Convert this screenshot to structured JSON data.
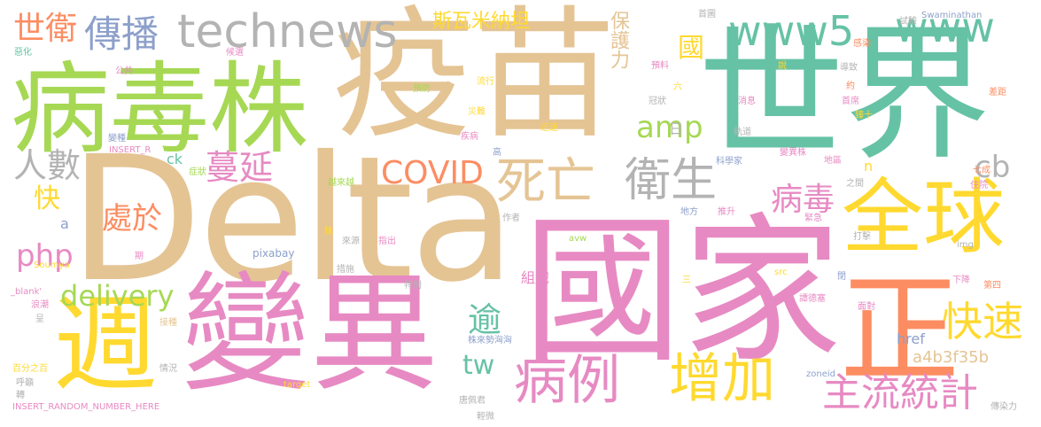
{
  "words": [
    {
      "id": "delta",
      "text": "Delta",
      "color": "#e5c494"
    },
    {
      "id": "yimiao",
      "text": "疫苗",
      "color": "#e5c494"
    },
    {
      "id": "shijie",
      "text": "世界",
      "color": "#66c2a5"
    },
    {
      "id": "guojia",
      "text": "國家",
      "color": "#e78ac3"
    },
    {
      "id": "bingduzhu",
      "text": "病毒株",
      "color": "#a6d854"
    },
    {
      "id": "bianyi",
      "text": "變異",
      "color": "#e78ac3"
    },
    {
      "id": "zhou",
      "text": "週",
      "color": "#ffd92f"
    },
    {
      "id": "zheng",
      "text": "正",
      "color": "#fc8d62"
    },
    {
      "id": "quanqiu",
      "text": "全球",
      "color": "#ffd92f"
    },
    {
      "id": "technews",
      "text": "technews",
      "color": "#b3b3b3"
    },
    {
      "id": "www5",
      "text": "www5",
      "color": "#66c2a5"
    },
    {
      "id": "www",
      "text": "www",
      "color": "#66c2a5"
    },
    {
      "id": "chuanbo",
      "text": "傳播",
      "color": "#8da0cb"
    },
    {
      "id": "shiwei",
      "text": "世衛",
      "color": "#fc8d62"
    },
    {
      "id": "bingli",
      "text": "病例",
      "color": "#e78ac3"
    },
    {
      "id": "zengjia",
      "text": "增加",
      "color": "#ffd92f"
    },
    {
      "id": "siwang",
      "text": "死亡",
      "color": "#e5c494"
    },
    {
      "id": "weisheng",
      "text": "衛生",
      "color": "#b3b3b3"
    },
    {
      "id": "kuaisu",
      "text": "快速",
      "color": "#ffd92f"
    },
    {
      "id": "zhuliu",
      "text": "主流統計",
      "color": "#e78ac3"
    },
    {
      "id": "covid",
      "text": "COVID",
      "color": "#fc8d62"
    },
    {
      "id": "amp",
      "text": "amp",
      "color": "#a6d854"
    },
    {
      "id": "delivery",
      "text": "delivery",
      "color": "#a6d854"
    },
    {
      "id": "php",
      "text": "php",
      "color": "#e78ac3"
    },
    {
      "id": "manyan",
      "text": "蔓延",
      "color": "#e78ac3"
    },
    {
      "id": "renshu",
      "text": "人數",
      "color": "#b3b3b3"
    },
    {
      "id": "chuyu",
      "text": "處於",
      "color": "#fc8d62"
    },
    {
      "id": "bingdu",
      "text": "病毒",
      "color": "#e78ac3"
    },
    {
      "id": "tw",
      "text": "tw",
      "color": "#66c2a5"
    },
    {
      "id": "yu",
      "text": "逾",
      "color": "#66c2a5"
    },
    {
      "id": "cb",
      "text": "cb",
      "color": "#b3b3b3"
    },
    {
      "id": "guo",
      "text": "國",
      "color": "#ffd92f"
    },
    {
      "id": "kuai",
      "text": "快",
      "color": "#ffd92f"
    },
    {
      "id": "baohuli",
      "text": "保護力",
      "color": "#e5c494"
    },
    {
      "id": "siwamina",
      "text": "斯瓦米納坦",
      "color": "#ffd92f"
    },
    {
      "id": "href",
      "text": "href",
      "color": "#8da0cb"
    },
    {
      "id": "a4b3f35b",
      "text": "a4b3f35b",
      "color": "#e5c494"
    },
    {
      "id": "zuzhi",
      "text": "組織",
      "color": "#e78ac3"
    },
    {
      "id": "ck",
      "text": "ck",
      "color": "#66c2a5"
    },
    {
      "id": "ri",
      "text": "日",
      "color": "#b3b3b3"
    },
    {
      "id": "n",
      "text": "n",
      "color": "#ffd92f"
    },
    {
      "id": "a",
      "text": "a",
      "color": "#8da0cb"
    },
    {
      "id": "pixabay",
      "text": "pixabay",
      "color": "#8da0cb"
    },
    {
      "id": "swaminathan",
      "text": "Swaminathan",
      "color": "#8da0cb"
    },
    {
      "id": "avw",
      "text": "avw",
      "color": "#a6d854"
    },
    {
      "id": "zoneid",
      "text": "zoneid",
      "color": "#8da0cb"
    },
    {
      "id": "target",
      "text": "target",
      "color": "#ffd92f"
    },
    {
      "id": "img",
      "text": "img",
      "color": "#b3b3b3"
    },
    {
      "id": "src",
      "text": "src",
      "color": "#ffd92f"
    },
    {
      "id": "insert_r",
      "text": "INSERT_R",
      "color": "#e78ac3"
    },
    {
      "id": "insert_random",
      "text": "INSERT_RANDOM_NUMBER_HERE",
      "color": "#e78ac3"
    },
    {
      "id": "blank",
      "text": "_blank'",
      "color": "#e78ac3"
    },
    {
      "id": "soumya",
      "text": "Soumya",
      "color": "#ffd92f"
    },
    {
      "id": "shoutu",
      "text": "首圖",
      "color": "#b3b3b3"
    },
    {
      "id": "shiyan",
      "text": "試驗",
      "color": "#b3b3b3"
    },
    {
      "id": "ganran",
      "text": "感染",
      "color": "#fc8d62"
    },
    {
      "id": "chaju",
      "text": "差距",
      "color": "#fc8d62"
    },
    {
      "id": "ehua",
      "text": "惡化",
      "color": "#66c2a5"
    },
    {
      "id": "houxuan",
      "text": "候選",
      "color": "#e78ac3"
    },
    {
      "id": "liuxing",
      "text": "流行",
      "color": "#ffd92f"
    },
    {
      "id": "gonggong",
      "text": "公共",
      "color": "#e78ac3"
    },
    {
      "id": "yufang",
      "text": "預防",
      "color": "#a6d854"
    },
    {
      "id": "yuji",
      "text": "預料",
      "color": "#e78ac3"
    },
    {
      "id": "shuo",
      "text": "說",
      "color": "#ffd92f"
    },
    {
      "id": "daozhi",
      "text": "導致",
      "color": "#b3b3b3"
    },
    {
      "id": "liu",
      "text": "六",
      "color": "#ffd92f"
    },
    {
      "id": "yue",
      "text": "約",
      "color": "#fc8d62"
    },
    {
      "id": "zainan",
      "text": "災難",
      "color": "#ffd92f"
    },
    {
      "id": "guanzhuang",
      "text": "冠狀",
      "color": "#b3b3b3"
    },
    {
      "id": "xiaoxi",
      "text": "消息",
      "color": "#e78ac3"
    },
    {
      "id": "shouxi",
      "text": "首席",
      "color": "#e78ac3"
    },
    {
      "id": "xunxu",
      "text": "迅速",
      "color": "#ffd92f"
    },
    {
      "id": "jibing",
      "text": "疾病",
      "color": "#e78ac3"
    },
    {
      "id": "bianzhong",
      "text": "變種",
      "color": "#8da0cb"
    },
    {
      "id": "gao",
      "text": "高",
      "color": "#8da0cb"
    },
    {
      "id": "guidao",
      "text": "軌道",
      "color": "#b3b3b3"
    },
    {
      "id": "zhenshi",
      "text": "臻十",
      "color": "#ffd92f"
    },
    {
      "id": "kexuejia",
      "text": "科學家",
      "color": "#8da0cb"
    },
    {
      "id": "bianyizhu",
      "text": "變異株",
      "color": "#e78ac3"
    },
    {
      "id": "diqu",
      "text": "地區",
      "color": "#e78ac3"
    },
    {
      "id": "zhengzhuang",
      "text": "症狀",
      "color": "#a6d854"
    },
    {
      "id": "yuelaiyue",
      "text": "越來越",
      "color": "#a6d854"
    },
    {
      "id": "zhijian",
      "text": "之間",
      "color": "#b3b3b3"
    },
    {
      "id": "zhuyuan",
      "text": "住院",
      "color": "#e78ac3"
    },
    {
      "id": "qicheng",
      "text": "七成",
      "color": "#fc8d62"
    },
    {
      "id": "zuozhe",
      "text": "作者",
      "color": "#b3b3b3"
    },
    {
      "id": "difang",
      "text": "地方",
      "color": "#8da0cb"
    },
    {
      "id": "tuisheng",
      "text": "推升",
      "color": "#e78ac3"
    },
    {
      "id": "zhu",
      "text": "株",
      "color": "#ffd92f"
    },
    {
      "id": "laiyuan",
      "text": "來源",
      "color": "#b3b3b3"
    },
    {
      "id": "zhichu",
      "text": "指出",
      "color": "#e78ac3"
    },
    {
      "id": "jinji",
      "text": "緊急",
      "color": "#e78ac3"
    },
    {
      "id": "daji",
      "text": "打擊",
      "color": "#b3b3b3"
    },
    {
      "id": "qi",
      "text": "期",
      "color": "#e78ac3"
    },
    {
      "id": "cuoshi",
      "text": "措施",
      "color": "#b3b3b3"
    },
    {
      "id": "san",
      "text": "三",
      "color": "#ffd92f"
    },
    {
      "id": "guanbi",
      "text": "閉",
      "color": "#8da0cb"
    },
    {
      "id": "tande",
      "text": "譚德塞",
      "color": "#e78ac3"
    },
    {
      "id": "xiajiang",
      "text": "下降",
      "color": "#e78ac3"
    },
    {
      "id": "disi",
      "text": "第四",
      "color": "#fc8d62"
    },
    {
      "id": "langchao",
      "text": "浪潮",
      "color": "#e78ac3"
    },
    {
      "id": "tebie",
      "text": "特別",
      "color": "#b3b3b3"
    },
    {
      "id": "mianxiang",
      "text": "面對",
      "color": "#e78ac3"
    },
    {
      "id": "cheng",
      "text": "呈",
      "color": "#b3b3b3"
    },
    {
      "id": "jiezhong",
      "text": "接種",
      "color": "#e5c494"
    },
    {
      "id": "zhulai",
      "text": "株來勢洶洶",
      "color": "#8da0cb"
    },
    {
      "id": "baifenzhi",
      "text": "百分之百",
      "color": "#ffd92f"
    },
    {
      "id": "qingkuang",
      "text": "情況",
      "color": "#b3b3b3"
    },
    {
      "id": "huyu",
      "text": "呼籲",
      "color": "#b3b3b3"
    },
    {
      "id": "zhuan",
      "text": "轉",
      "color": "#b3b3b3"
    },
    {
      "id": "tangpeijun",
      "text": "唐佩君",
      "color": "#b3b3b3"
    },
    {
      "id": "qingwei",
      "text": "輕微",
      "color": "#b3b3b3"
    },
    {
      "id": "chuanranli",
      "text": "傳染力",
      "color": "#b3b3b3"
    }
  ]
}
